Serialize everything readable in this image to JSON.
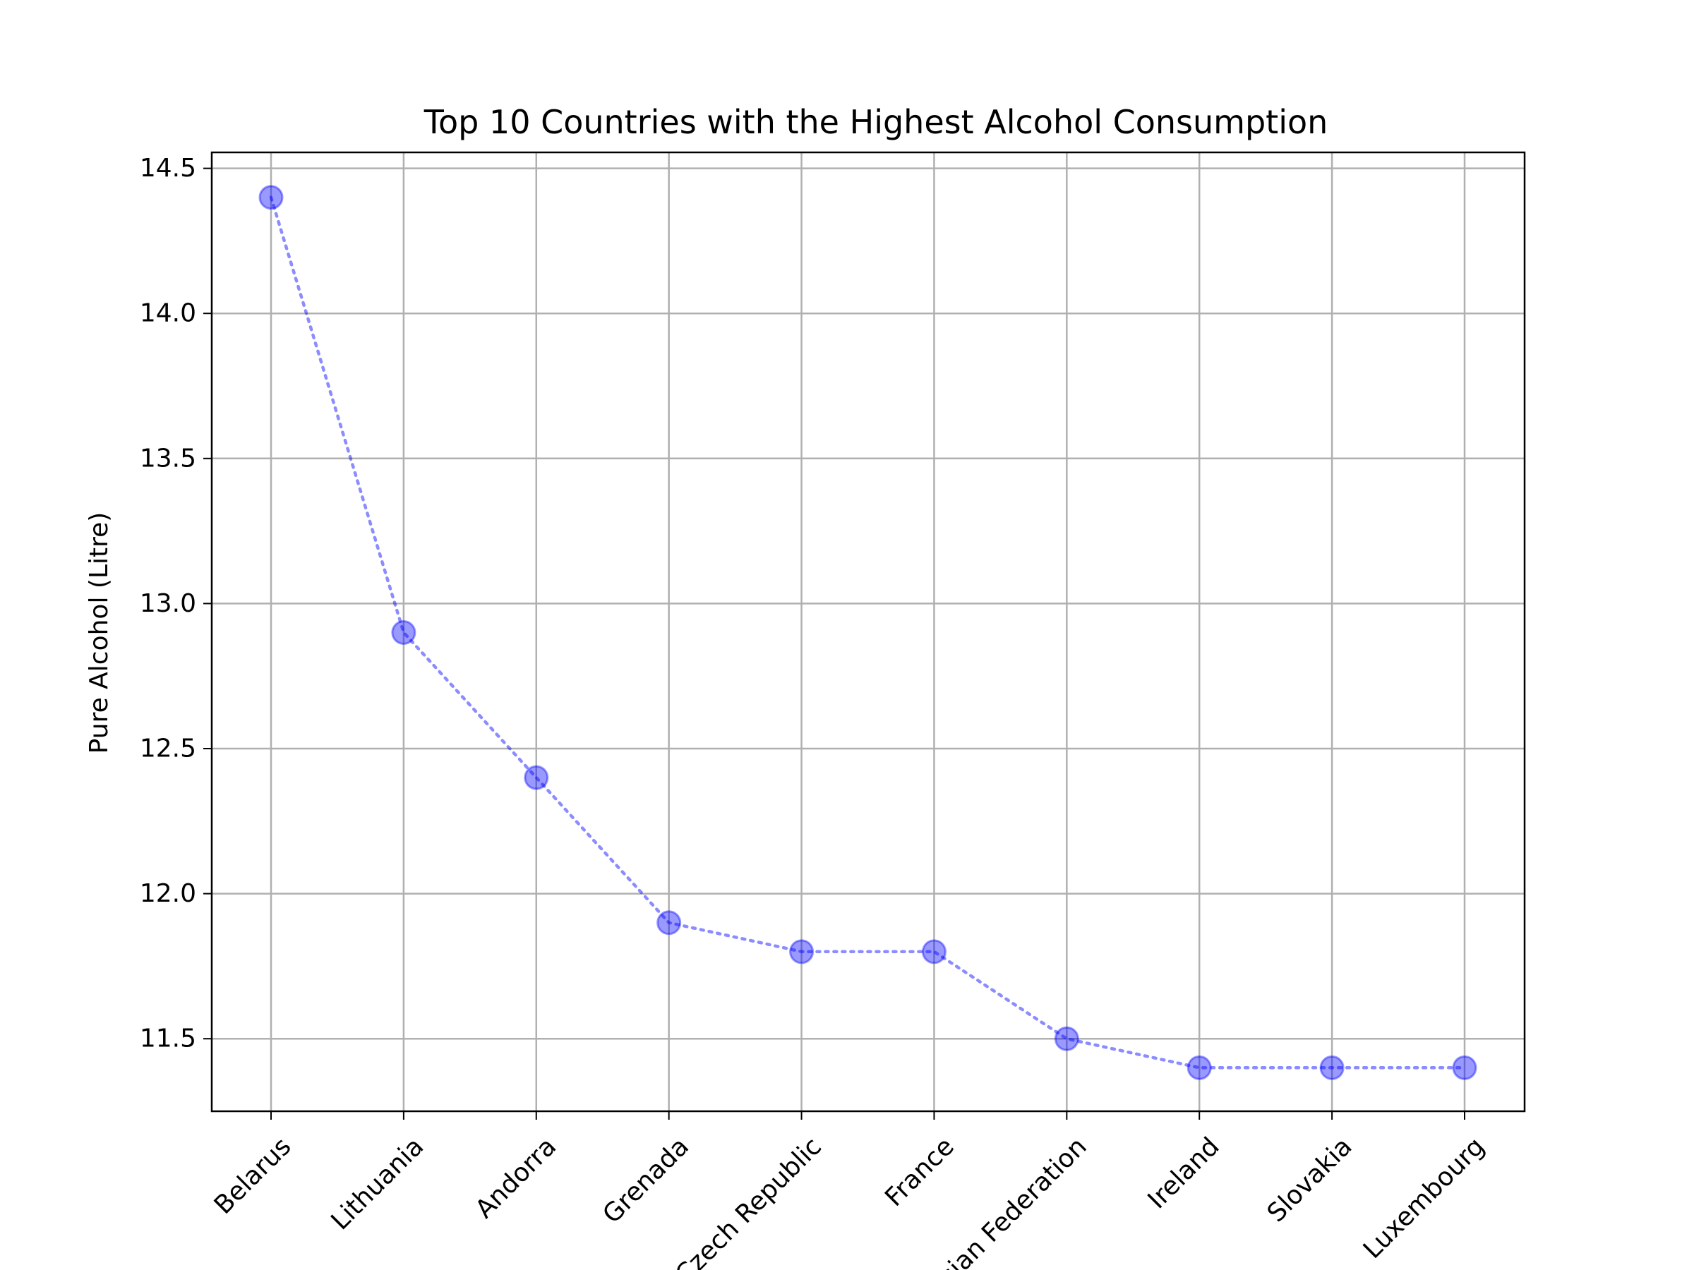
{
  "chart_data": {
    "type": "line",
    "title": "Top 10 Countries with the Highest Alcohol Consumption",
    "xlabel": "",
    "ylabel": "Pure Alcohol (Litre)",
    "categories": [
      "Belarus",
      "Lithuania",
      "Andorra",
      "Grenada",
      "Czech Republic",
      "France",
      "Russian Federation",
      "Ireland",
      "Slovakia",
      "Luxembourg"
    ],
    "values": [
      14.4,
      12.9,
      12.4,
      11.9,
      11.8,
      11.8,
      11.5,
      11.4,
      11.4,
      11.4
    ],
    "ylim": [
      11.25,
      14.555
    ],
    "yticks": [
      "11.5",
      "12.0",
      "12.5",
      "13.0",
      "13.5",
      "14.0",
      "14.5"
    ],
    "grid": true,
    "line_style": "dotted",
    "marker": "circle",
    "color": "#0000ff"
  }
}
